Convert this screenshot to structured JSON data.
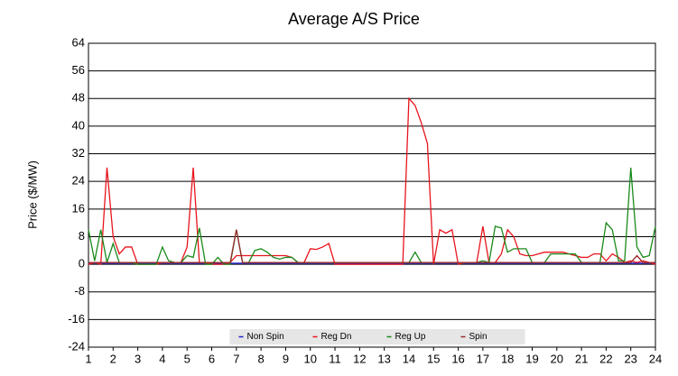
{
  "chart_data": {
    "type": "line",
    "title": "Average A/S Price",
    "y_label": "Price ($/MW)",
    "x": [
      1,
      1.25,
      1.5,
      1.75,
      2,
      2.25,
      2.5,
      2.75,
      3,
      3.25,
      3.5,
      3.75,
      4,
      4.25,
      4.5,
      4.75,
      5,
      5.25,
      5.5,
      5.75,
      6,
      6.25,
      6.5,
      6.75,
      7,
      7.25,
      7.5,
      7.75,
      8,
      8.25,
      8.5,
      8.75,
      9,
      9.25,
      9.5,
      9.75,
      10,
      10.25,
      10.5,
      10.75,
      11,
      11.25,
      11.5,
      11.75,
      12,
      12.25,
      12.5,
      12.75,
      13,
      13.25,
      13.5,
      13.75,
      14,
      14.25,
      14.5,
      14.75,
      15,
      15.25,
      15.5,
      15.75,
      16,
      16.25,
      16.5,
      16.75,
      17,
      17.25,
      17.5,
      17.75,
      18,
      18.25,
      18.5,
      18.75,
      19,
      19.25,
      19.5,
      19.75,
      20,
      20.25,
      20.5,
      20.75,
      21,
      21.25,
      21.5,
      21.75,
      22,
      22.25,
      22.5,
      22.75,
      23,
      23.25,
      23.5,
      23.75,
      24
    ],
    "series": [
      {
        "name": "Non Spin",
        "color": "#1f1fd0",
        "values": [
          0.3,
          0.3,
          0.3,
          0.3,
          0.3,
          0.3,
          0.3,
          0.3,
          0.3,
          0.3,
          0.3,
          0.3,
          0.3,
          0.3,
          0.3,
          0.3,
          0.3,
          0.3,
          0.3,
          0.3,
          0.3,
          0.3,
          0.3,
          0.3,
          0.3,
          0.3,
          0.3,
          0.3,
          0.3,
          0.3,
          0.3,
          0.3,
          0.3,
          0.3,
          0.3,
          0.3,
          0.3,
          0.3,
          0.3,
          0.3,
          0.3,
          0.3,
          0.3,
          0.3,
          0.3,
          0.3,
          0.3,
          0.3,
          0.3,
          0.3,
          0.3,
          0.3,
          0.3,
          0.3,
          0.3,
          0.3,
          0.3,
          0.3,
          0.3,
          0.3,
          0.3,
          0.3,
          0.3,
          0.3,
          0.3,
          0.3,
          0.3,
          0.3,
          0.3,
          0.3,
          0.3,
          0.3,
          0.3,
          0.3,
          0.3,
          0.3,
          0.3,
          0.3,
          0.3,
          0.3,
          0.3,
          0.3,
          0.3,
          0.3,
          0.3,
          0.3,
          0.3,
          0.3,
          0.3,
          0.3,
          0.3,
          0.3,
          0.3
        ]
      },
      {
        "name": "Reg Dn",
        "color": "#e8141c",
        "values": [
          0,
          0.5,
          0,
          28,
          8,
          3,
          5,
          5,
          0,
          0,
          0,
          0,
          0.5,
          0.5,
          0.5,
          0.5,
          5,
          28,
          0.5,
          0.5,
          0,
          0,
          0,
          0.5,
          2.5,
          2.5,
          2.5,
          2.5,
          2.5,
          2.5,
          2.5,
          2.5,
          2.5,
          2,
          0.5,
          0.5,
          4.5,
          4.3,
          5,
          6,
          0,
          0,
          0,
          0,
          0,
          0,
          0,
          0,
          0,
          0,
          0,
          0,
          48,
          46,
          41,
          35,
          0,
          10,
          9,
          10,
          0,
          0.5,
          0.5,
          0.5,
          11,
          0.5,
          0.5,
          3,
          10,
          8,
          3,
          2.5,
          2.5,
          3,
          3.5,
          3.5,
          3.5,
          3.5,
          3,
          2.5,
          2,
          2,
          3,
          3,
          1,
          3,
          2,
          0.5,
          1,
          0.5,
          1,
          0.5,
          0
        ]
      },
      {
        "name": "Reg Up",
        "color": "#1a8a1a",
        "values": [
          10,
          1,
          10,
          0.5,
          6,
          0.5,
          0.5,
          0.5,
          0,
          0,
          0,
          0,
          5,
          1,
          0.5,
          0.5,
          2.5,
          2,
          10.5,
          0,
          0,
          2,
          0,
          0,
          10,
          0.5,
          0.5,
          4,
          4.5,
          3.5,
          2,
          1.5,
          2,
          2,
          0.5,
          0.5,
          0.5,
          0.5,
          0.5,
          0.5,
          0.5,
          0.5,
          0.5,
          0.5,
          0.5,
          0.5,
          0.5,
          0.5,
          0.5,
          0.5,
          0.5,
          0.5,
          0.5,
          3.5,
          0.5,
          0.5,
          0.5,
          0.5,
          0.5,
          0.5,
          0.5,
          0.5,
          0.5,
          0.5,
          1,
          0.5,
          11,
          10.5,
          3.5,
          4.5,
          4.5,
          4.5,
          0.5,
          0.5,
          0.5,
          3,
          3,
          3,
          3,
          3,
          0.5,
          0.5,
          0.5,
          0.5,
          12,
          10,
          1,
          1,
          28,
          5,
          2,
          2.5,
          11
        ]
      },
      {
        "name": "Spin",
        "color": "#9a2a2a",
        "values": [
          0.5,
          0.5,
          0.5,
          0.5,
          0.5,
          0.5,
          0.5,
          0.5,
          0.5,
          0.5,
          0.5,
          0.5,
          0.5,
          0.5,
          0.5,
          0.5,
          0.5,
          0.5,
          0.5,
          0.5,
          0.5,
          0.5,
          0.5,
          0.5,
          10,
          0.5,
          0.5,
          0.5,
          0.5,
          0.5,
          0.5,
          0.5,
          0.5,
          0.5,
          0.5,
          0.5,
          0.5,
          0.5,
          0.5,
          0.5,
          0.5,
          0.5,
          0.5,
          0.5,
          0.5,
          0.5,
          0.5,
          0.5,
          0.5,
          0.5,
          0.5,
          0.5,
          0.5,
          0.5,
          0.5,
          0.5,
          0.5,
          0.5,
          0.5,
          0.5,
          0.5,
          0.5,
          0.5,
          0.5,
          0.5,
          0.5,
          0.5,
          0.5,
          0.5,
          0.5,
          0.5,
          0.5,
          0.5,
          0.5,
          0.5,
          0.5,
          0.5,
          0.5,
          0.5,
          0.5,
          0.5,
          0.5,
          0.5,
          0.5,
          0.5,
          0.5,
          0.5,
          0.5,
          0.5,
          2.5,
          0.5,
          0.5,
          0.5
        ]
      }
    ],
    "xlim": [
      1,
      24
    ],
    "xticks": [
      1,
      2,
      3,
      4,
      5,
      6,
      7,
      8,
      9,
      10,
      11,
      12,
      13,
      14,
      15,
      16,
      17,
      18,
      19,
      20,
      21,
      22,
      23,
      24
    ],
    "ylim": [
      -24,
      64
    ],
    "yticks": [
      -24,
      -16,
      -8,
      0,
      8,
      16,
      24,
      32,
      40,
      48,
      56,
      64
    ],
    "grid": true,
    "legend": "bottom"
  }
}
